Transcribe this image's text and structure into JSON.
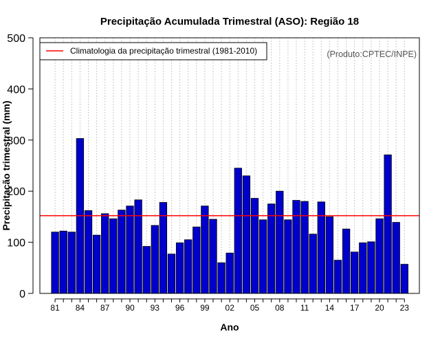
{
  "chart_data": {
    "type": "bar",
    "title": "Precipitação Acumulada Trimestral (ASO): Região 18",
    "xlabel": "Ano",
    "ylabel": "Precipitação trimestral (mm)",
    "ylim": [
      0,
      500
    ],
    "yticks": [
      0,
      100,
      200,
      300,
      400,
      500
    ],
    "grid": "vertical dotted",
    "categories": [
      "1981",
      "1982",
      "1983",
      "1984",
      "1985",
      "1986",
      "1987",
      "1988",
      "1989",
      "1990",
      "1991",
      "1992",
      "1993",
      "1994",
      "1995",
      "1996",
      "1997",
      "1998",
      "1999",
      "2000",
      "2001",
      "2002",
      "2003",
      "2004",
      "2005",
      "2006",
      "2007",
      "2008",
      "2009",
      "2010",
      "2011",
      "2012",
      "2013",
      "2014",
      "2015",
      "2016",
      "2017",
      "2018",
      "2019",
      "2020",
      "2021",
      "2022",
      "2023"
    ],
    "tick_labels": [
      "81",
      "84",
      "87",
      "90",
      "93",
      "96",
      "99",
      "02",
      "05",
      "08",
      "11",
      "14",
      "17",
      "20",
      "23"
    ],
    "values": [
      120,
      122,
      120,
      303,
      162,
      114,
      156,
      146,
      163,
      171,
      183,
      92,
      133,
      178,
      77,
      99,
      105,
      130,
      171,
      145,
      60,
      79,
      245,
      230,
      186,
      144,
      175,
      200,
      144,
      182,
      180,
      116,
      179,
      150,
      65,
      126,
      81,
      99,
      101,
      146,
      271,
      139,
      57
    ],
    "bar_color": "#0000cc",
    "climatology": {
      "label": "Climatologia da precipitação trimestral (1981-2010)",
      "value": 152,
      "color": "#ff0000"
    },
    "legend_position": "top-left",
    "source_note": "(Produto:CPTEC/INPE)"
  }
}
